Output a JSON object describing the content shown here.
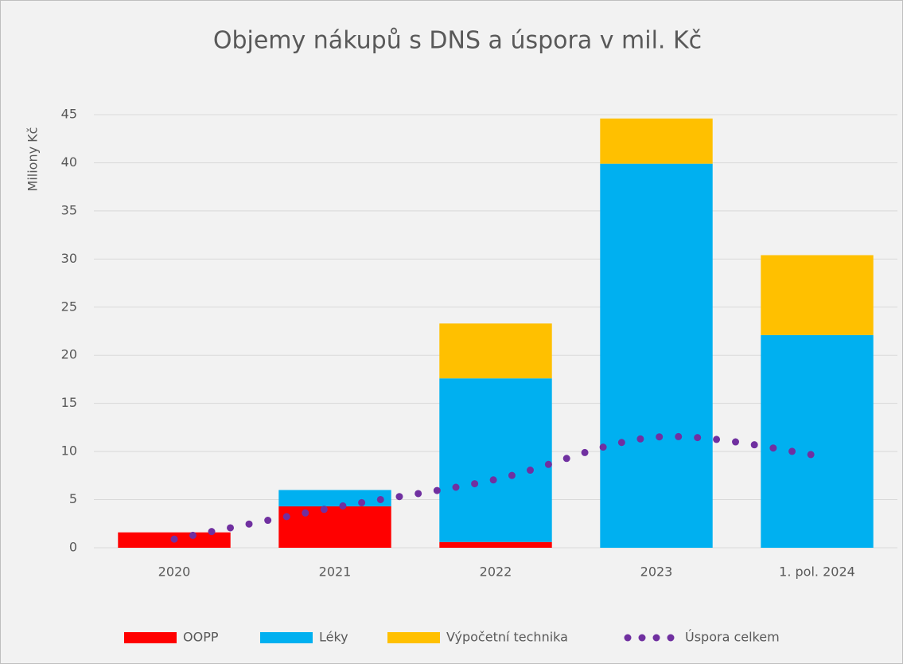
{
  "chart_data": {
    "type": "bar",
    "stacked": true,
    "title": "Objemy nákupů s DNS a úspora v mil. Kč",
    "y_label": "Miliony Kč",
    "categories": [
      "2020",
      "2021",
      "2022",
      "2023",
      "1. pol. 2024"
    ],
    "series": [
      {
        "name": "OOPP",
        "color": "#ff0000",
        "values": [
          1.6,
          4.3,
          0.6,
          0,
          0
        ]
      },
      {
        "name": "Léky",
        "color": "#00b0f0",
        "values": [
          0,
          1.7,
          17.0,
          39.9,
          22.1
        ]
      },
      {
        "name": "Výpočetní technika",
        "color": "#ffc000",
        "values": [
          0,
          0,
          5.7,
          4.7,
          8.3
        ]
      },
      {
        "name": "Úspora celkem",
        "type": "line",
        "style": "dotted",
        "smooth": true,
        "color": "#7030a0",
        "values": [
          0.9,
          4.2,
          7.1,
          11.5,
          9.6
        ]
      }
    ],
    "ylim": [
      0,
      45
    ],
    "yticks": [
      0,
      5,
      10,
      15,
      20,
      25,
      30,
      35,
      40,
      45
    ],
    "grid": true,
    "legend": "bottom"
  }
}
